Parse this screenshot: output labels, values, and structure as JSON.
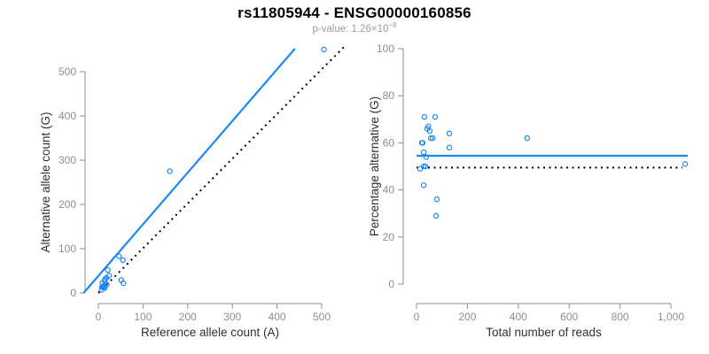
{
  "header": {
    "title": "rs11805944 - ENSG00000160856",
    "p_value_text": "p-value: 1.26×10",
    "p_value_exponent": "−8"
  },
  "colors": {
    "accent_blue": "#1E87F0",
    "line_black": "#000000",
    "axis_gray": "#8E8E8E",
    "tick_label_gray": "#8E8E8E",
    "axis_title_color": "#303030",
    "title_color": "#000000",
    "subtitle_color": "#9B9B9B"
  },
  "chart_data": [
    {
      "type": "scatter",
      "name": "allele-counts-scatter",
      "xlabel": "Reference allele count (A)",
      "ylabel": "Alternative allele count (G)",
      "xlim": [
        0,
        500
      ],
      "ylim": [
        0,
        500
      ],
      "xticks": [
        0,
        100,
        200,
        300,
        400,
        500
      ],
      "xtick_labels": [
        "0",
        "100",
        "200",
        "300",
        "400",
        "500"
      ],
      "yticks": [
        0,
        100,
        200,
        300,
        400,
        500
      ],
      "ytick_labels": [
        "0",
        "100",
        "200",
        "300",
        "400",
        "500"
      ],
      "grid": false,
      "legend": "none",
      "marker": "open-circle",
      "points": [
        [
          9,
          22
        ],
        [
          21,
          52
        ],
        [
          14,
          28
        ],
        [
          15,
          31
        ],
        [
          18,
          34
        ],
        [
          24,
          39
        ],
        [
          8,
          13
        ],
        [
          46,
          83
        ],
        [
          10,
          14
        ],
        [
          55,
          74
        ],
        [
          12,
          16
        ],
        [
          19,
          19
        ],
        [
          7,
          7
        ],
        [
          14,
          14
        ],
        [
          14,
          11
        ],
        [
          51,
          29
        ],
        [
          56,
          22
        ],
        [
          160,
          275
        ],
        [
          505,
          550
        ]
      ],
      "lines": [
        {
          "name": "regression-line",
          "style": "solid",
          "color_key": "accent_blue",
          "x": [
            -33,
            440
          ],
          "y": [
            0,
            552
          ]
        },
        {
          "name": "identity-line",
          "style": "dotted",
          "color_key": "line_black",
          "x": [
            0,
            550
          ],
          "y": [
            0,
            556
          ]
        }
      ]
    },
    {
      "type": "scatter",
      "name": "percentage-vs-reads-scatter",
      "xlabel": "Total number of reads",
      "ylabel": "Percentage alternative (G)",
      "xlim": [
        0,
        1000
      ],
      "ylim": [
        0,
        100
      ],
      "xticks": [
        0,
        200,
        400,
        600,
        800,
        1000
      ],
      "xtick_labels": [
        "0",
        "200",
        "400",
        "600",
        "800",
        "1,000"
      ],
      "yticks": [
        0,
        20,
        40,
        60,
        80,
        100
      ],
      "ytick_labels": [
        "0",
        "20",
        "40",
        "60",
        "80",
        "100"
      ],
      "grid": false,
      "legend": "none",
      "marker": "open-circle",
      "points": [
        [
          31,
          71
        ],
        [
          73,
          71
        ],
        [
          42,
          66
        ],
        [
          46,
          67
        ],
        [
          52,
          65
        ],
        [
          63,
          62
        ],
        [
          56,
          62
        ],
        [
          21,
          60
        ],
        [
          24,
          60
        ],
        [
          129,
          64
        ],
        [
          129,
          58
        ],
        [
          28,
          56
        ],
        [
          38,
          54
        ],
        [
          14,
          49
        ],
        [
          28,
          50
        ],
        [
          35,
          50
        ],
        [
          28,
          42
        ],
        [
          80,
          36
        ],
        [
          77,
          29
        ],
        [
          435,
          62
        ],
        [
          1056,
          51
        ]
      ],
      "lines": [
        {
          "name": "mean-line",
          "style": "solid",
          "color_key": "accent_blue",
          "x": [
            0,
            1066
          ],
          "y": [
            54.5,
            54.5
          ]
        },
        {
          "name": "reference-line",
          "style": "dotted",
          "color_key": "line_black",
          "x": [
            0,
            1045
          ],
          "y": [
            49.5,
            49.5
          ]
        }
      ]
    }
  ]
}
